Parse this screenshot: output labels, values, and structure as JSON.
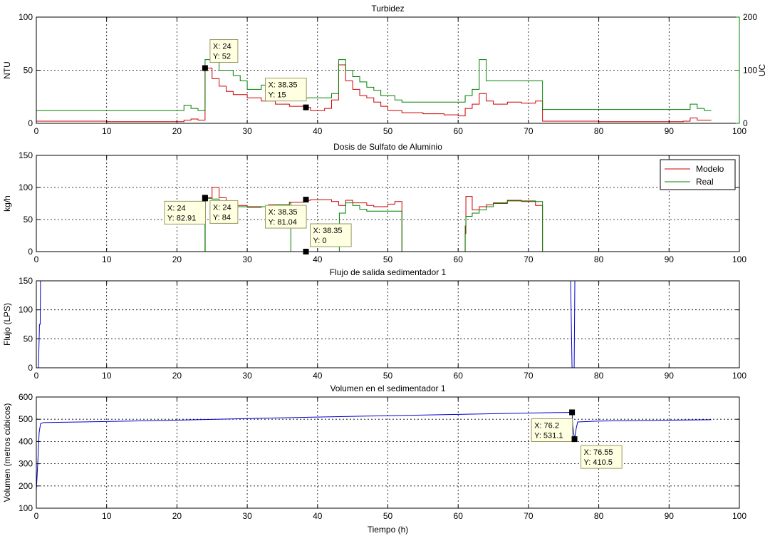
{
  "chart_data": [
    {
      "type": "line",
      "title": "Turbidez",
      "xlabel": "",
      "ylabel": "NTU",
      "ylabel_right": "UC",
      "xlim": [
        0,
        100
      ],
      "ylim": [
        0,
        100
      ],
      "ylim_right": [
        0,
        200
      ],
      "xticks": [
        0,
        10,
        20,
        30,
        40,
        50,
        60,
        70,
        80,
        90,
        100
      ],
      "yticks": [
        0,
        50,
        100
      ],
      "yticks_right": [
        0,
        100,
        200
      ],
      "grid": true,
      "colors": {
        "left_axis": "#cc0000",
        "right_axis": "#008000"
      },
      "series": [
        {
          "axis": "left",
          "color": "#cc0000",
          "step": true,
          "points": [
            [
              0,
              2
            ],
            [
              10,
              1.5
            ],
            [
              21,
              3
            ],
            [
              22,
              4
            ],
            [
              23,
              3
            ],
            [
              24,
              52
            ],
            [
              25,
              42
            ],
            [
              26,
              35
            ],
            [
              27,
              30
            ],
            [
              28,
              27
            ],
            [
              30,
              24
            ],
            [
              32,
              21
            ],
            [
              34,
              18
            ],
            [
              36,
              16
            ],
            [
              38,
              15
            ],
            [
              39,
              12
            ],
            [
              41,
              14
            ],
            [
              42,
              22
            ],
            [
              43,
              55
            ],
            [
              44,
              40
            ],
            [
              45,
              32
            ],
            [
              46,
              26
            ],
            [
              47,
              24
            ],
            [
              48,
              20
            ],
            [
              49,
              16
            ],
            [
              50,
              12
            ],
            [
              52,
              10
            ],
            [
              55,
              9
            ],
            [
              58,
              8
            ],
            [
              60,
              7
            ],
            [
              61,
              14
            ],
            [
              62,
              18
            ],
            [
              63,
              28
            ],
            [
              64,
              21
            ],
            [
              65,
              18
            ],
            [
              67,
              20
            ],
            [
              69,
              19
            ],
            [
              71,
              21
            ],
            [
              72,
              2
            ],
            [
              80,
              1.5
            ],
            [
              92,
              2
            ],
            [
              93,
              5
            ],
            [
              94,
              3
            ],
            [
              95,
              3
            ],
            [
              96,
              3
            ]
          ]
        },
        {
          "axis": "right",
          "color": "#008000",
          "step": true,
          "points": [
            [
              0,
              24
            ],
            [
              21,
              34
            ],
            [
              22,
              28
            ],
            [
              23,
              24
            ],
            [
              24,
              120
            ],
            [
              26,
              100
            ],
            [
              28,
              90
            ],
            [
              29,
              80
            ],
            [
              30,
              64
            ],
            [
              32,
              72
            ],
            [
              33,
              76
            ],
            [
              35,
              56
            ],
            [
              36,
              52
            ],
            [
              38,
              48
            ],
            [
              42,
              56
            ],
            [
              43,
              120
            ],
            [
              44,
              100
            ],
            [
              45,
              88
            ],
            [
              46,
              78
            ],
            [
              47,
              68
            ],
            [
              48,
              62
            ],
            [
              49,
              52
            ],
            [
              51,
              44
            ],
            [
              52,
              40
            ],
            [
              60,
              40
            ],
            [
              61,
              52
            ],
            [
              62,
              64
            ],
            [
              63,
              120
            ],
            [
              64,
              80
            ],
            [
              72,
              26
            ],
            [
              92,
              26
            ],
            [
              93,
              36
            ],
            [
              94,
              28
            ],
            [
              95,
              24
            ],
            [
              96,
              24
            ]
          ]
        }
      ],
      "annotations": [
        {
          "x": 24,
          "y": 52,
          "label_x": "X: 24",
          "label_y": "Y: 52"
        },
        {
          "x": 38.35,
          "y": 15,
          "label_x": "X: 38.35",
          "label_y": "Y: 15"
        }
      ]
    },
    {
      "type": "line",
      "title": "Dosis de Sulfato de Aluminio",
      "xlabel": "",
      "ylabel": "kg/h",
      "xlim": [
        0,
        100
      ],
      "ylim": [
        0,
        150
      ],
      "xticks": [
        0,
        10,
        20,
        30,
        40,
        50,
        60,
        70,
        80,
        90,
        100
      ],
      "yticks": [
        0,
        50,
        100,
        150
      ],
      "grid": true,
      "legend": {
        "position": "top-right",
        "entries": [
          "Modelo",
          "Real"
        ]
      },
      "series": [
        {
          "name": "Modelo",
          "color": "#cc0000",
          "step": true,
          "points": [
            [
              0,
              0
            ],
            [
              24,
              84
            ],
            [
              25,
              100
            ],
            [
              26,
              84
            ],
            [
              27,
              78
            ],
            [
              28,
              72
            ],
            [
              30,
              70
            ],
            [
              33,
              73
            ],
            [
              36,
              77
            ],
            [
              38,
              80
            ],
            [
              39,
              81
            ],
            [
              42,
              78
            ],
            [
              43,
              72
            ],
            [
              44,
              80
            ],
            [
              45,
              76
            ],
            [
              47,
              72
            ],
            [
              48,
              70
            ],
            [
              50,
              74
            ],
            [
              51,
              78
            ],
            [
              52,
              0
            ],
            [
              61,
              28
            ],
            [
              61.1,
              86
            ],
            [
              62,
              65
            ],
            [
              63,
              70
            ],
            [
              64,
              73
            ],
            [
              65,
              76
            ],
            [
              67,
              80
            ],
            [
              69,
              78
            ],
            [
              71,
              72
            ],
            [
              72,
              0
            ],
            [
              96,
              0
            ]
          ]
        },
        {
          "name": "Real",
          "color": "#008000",
          "step": true,
          "points": [
            [
              0,
              0
            ],
            [
              24,
              83
            ],
            [
              24.01,
              0
            ],
            [
              24.02,
              83
            ],
            [
              25,
              82
            ],
            [
              26,
              72
            ],
            [
              28,
              70
            ],
            [
              30,
              69
            ],
            [
              32,
              70
            ],
            [
              34,
              73
            ],
            [
              36,
              76
            ],
            [
              36.2,
              0
            ],
            [
              36.3,
              0
            ],
            [
              43,
              0
            ],
            [
              43.1,
              60
            ],
            [
              44,
              76
            ],
            [
              45,
              72
            ],
            [
              46,
              66
            ],
            [
              47,
              63
            ],
            [
              52,
              0
            ],
            [
              61,
              40
            ],
            [
              61.1,
              55
            ],
            [
              62,
              60
            ],
            [
              63,
              65
            ],
            [
              64,
              70
            ],
            [
              65,
              75
            ],
            [
              67,
              79
            ],
            [
              71,
              78
            ],
            [
              72,
              0
            ],
            [
              96,
              0
            ]
          ]
        }
      ],
      "annotations": [
        {
          "x": 24,
          "y": 82.91,
          "label_x": "X: 24",
          "label_y": "Y: 82.91"
        },
        {
          "x": 24,
          "y": 84,
          "label_x": "X: 24",
          "label_y": "Y: 84"
        },
        {
          "x": 38.35,
          "y": 81.04,
          "label_x": "X: 38.35",
          "label_y": "Y: 81.04"
        },
        {
          "x": 38.35,
          "y": 0,
          "label_x": "X: 38.35",
          "label_y": "Y: 0"
        }
      ]
    },
    {
      "type": "line",
      "title": "Flujo de salida sedimentador 1",
      "xlabel": "",
      "ylabel": "Flujo (LPS)",
      "xlim": [
        0,
        100
      ],
      "ylim": [
        0,
        150
      ],
      "xticks": [
        0,
        10,
        20,
        30,
        40,
        50,
        60,
        70,
        80,
        90,
        100
      ],
      "yticks": [
        0,
        50,
        100,
        150
      ],
      "grid": true,
      "series": [
        {
          "color": "#0000cc",
          "step": false,
          "points": [
            [
              0.3,
              0
            ],
            [
              0.45,
              75
            ],
            [
              0.55,
              75
            ],
            [
              0.6,
              150
            ],
            [
              76,
              150
            ],
            [
              76.2,
              0
            ],
            [
              76.5,
              0
            ],
            [
              76.6,
              150
            ],
            [
              96,
              150
            ]
          ]
        }
      ]
    },
    {
      "type": "line",
      "title": "Volumen en el sedimentador 1",
      "xlabel": "Tiempo (h)",
      "ylabel": "Volumen (metros cúbicos)",
      "xlim": [
        0,
        100
      ],
      "ylim": [
        100,
        600
      ],
      "xticks": [
        0,
        10,
        20,
        30,
        40,
        50,
        60,
        70,
        80,
        90,
        100
      ],
      "yticks": [
        100,
        200,
        300,
        400,
        500,
        600
      ],
      "grid": true,
      "series": [
        {
          "color": "#0000cc",
          "step": false,
          "points": [
            [
              0,
              180
            ],
            [
              0.2,
              300
            ],
            [
              0.4,
              440
            ],
            [
              0.6,
              480
            ],
            [
              1,
              485
            ],
            [
              10,
              490
            ],
            [
              20,
              496
            ],
            [
              30,
              503
            ],
            [
              40,
              510
            ],
            [
              50,
              516
            ],
            [
              60,
              522
            ],
            [
              70,
              528
            ],
            [
              76.2,
              531.1
            ],
            [
              76.3,
              470
            ],
            [
              76.55,
              410.5
            ],
            [
              76.8,
              460
            ],
            [
              77,
              488
            ],
            [
              80,
              492
            ],
            [
              90,
              496
            ],
            [
              96,
              498
            ]
          ]
        }
      ],
      "annotations": [
        {
          "x": 76.2,
          "y": 531.1,
          "label_x": "X: 76.2",
          "label_y": "Y: 531.1"
        },
        {
          "x": 76.55,
          "y": 410.5,
          "label_x": "X: 76.55",
          "label_y": "Y: 410.5"
        }
      ]
    }
  ]
}
